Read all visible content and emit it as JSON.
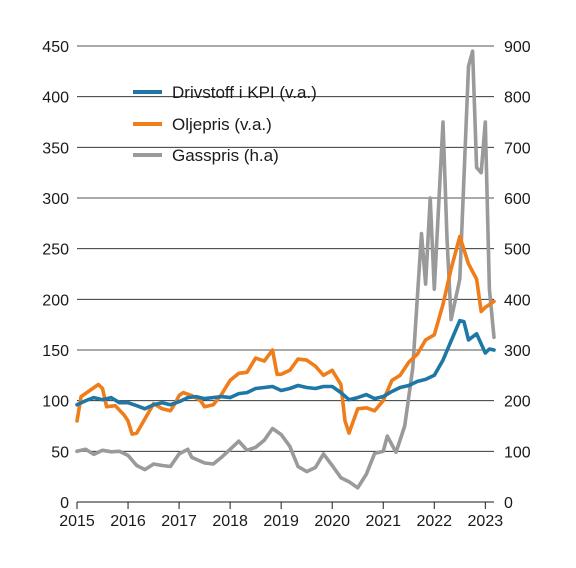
{
  "chart_data": {
    "type": "line",
    "title": "",
    "xlabel": "",
    "ylabel_left": "",
    "ylabel_right": "",
    "x_tick_labels": [
      "2015",
      "2016",
      "2017",
      "2018",
      "2019",
      "2020",
      "2021",
      "2022",
      "2023"
    ],
    "x_range": [
      2015.0,
      2023.17
    ],
    "y_left_ticks": [
      0,
      50,
      100,
      150,
      200,
      250,
      300,
      350,
      400,
      450
    ],
    "y_left_range": [
      0,
      450
    ],
    "y_right_ticks": [
      0,
      100,
      200,
      300,
      400,
      500,
      600,
      700,
      800,
      900
    ],
    "y_right_range": [
      0,
      900
    ],
    "grid": "horizontal",
    "legend_position": "top-left",
    "series": [
      {
        "name": "Drivstoff i KPI (v.a.)",
        "color": "#1f77a6",
        "axis": "left",
        "points": [
          [
            2015.0,
            96
          ],
          [
            2015.17,
            100
          ],
          [
            2015.33,
            103
          ],
          [
            2015.5,
            101
          ],
          [
            2015.67,
            103
          ],
          [
            2015.83,
            98
          ],
          [
            2016.0,
            98
          ],
          [
            2016.17,
            95
          ],
          [
            2016.33,
            92
          ],
          [
            2016.5,
            96
          ],
          [
            2016.67,
            98
          ],
          [
            2016.83,
            96
          ],
          [
            2017.0,
            99
          ],
          [
            2017.17,
            103
          ],
          [
            2017.33,
            104
          ],
          [
            2017.5,
            102
          ],
          [
            2017.67,
            103
          ],
          [
            2017.83,
            104
          ],
          [
            2018.0,
            103
          ],
          [
            2018.17,
            107
          ],
          [
            2018.33,
            108
          ],
          [
            2018.5,
            112
          ],
          [
            2018.67,
            113
          ],
          [
            2018.83,
            114
          ],
          [
            2019.0,
            110
          ],
          [
            2019.17,
            112
          ],
          [
            2019.33,
            115
          ],
          [
            2019.5,
            113
          ],
          [
            2019.67,
            112
          ],
          [
            2019.83,
            114
          ],
          [
            2020.0,
            114
          ],
          [
            2020.17,
            108
          ],
          [
            2020.33,
            101
          ],
          [
            2020.5,
            103
          ],
          [
            2020.67,
            106
          ],
          [
            2020.83,
            102
          ],
          [
            2021.0,
            104
          ],
          [
            2021.17,
            109
          ],
          [
            2021.33,
            113
          ],
          [
            2021.5,
            115
          ],
          [
            2021.67,
            119
          ],
          [
            2021.83,
            121
          ],
          [
            2022.0,
            125
          ],
          [
            2022.17,
            140
          ],
          [
            2022.33,
            159
          ],
          [
            2022.5,
            179
          ],
          [
            2022.58,
            178
          ],
          [
            2022.67,
            160
          ],
          [
            2022.83,
            166
          ],
          [
            2023.0,
            147
          ],
          [
            2023.08,
            151
          ],
          [
            2023.17,
            150
          ]
        ]
      },
      {
        "name": "Oljepris (v.a.)",
        "color": "#ef7d1a",
        "axis": "left",
        "points": [
          [
            2015.0,
            80
          ],
          [
            2015.08,
            104
          ],
          [
            2015.25,
            110
          ],
          [
            2015.42,
            116
          ],
          [
            2015.5,
            112
          ],
          [
            2015.58,
            94
          ],
          [
            2015.75,
            95
          ],
          [
            2015.92,
            86
          ],
          [
            2016.0,
            80
          ],
          [
            2016.08,
            67
          ],
          [
            2016.17,
            68
          ],
          [
            2016.33,
            82
          ],
          [
            2016.5,
            97
          ],
          [
            2016.67,
            92
          ],
          [
            2016.83,
            90
          ],
          [
            2016.92,
            97
          ],
          [
            2017.0,
            105
          ],
          [
            2017.08,
            108
          ],
          [
            2017.25,
            105
          ],
          [
            2017.42,
            100
          ],
          [
            2017.5,
            94
          ],
          [
            2017.67,
            96
          ],
          [
            2017.83,
            106
          ],
          [
            2018.0,
            120
          ],
          [
            2018.17,
            127
          ],
          [
            2018.33,
            128
          ],
          [
            2018.5,
            142
          ],
          [
            2018.67,
            139
          ],
          [
            2018.83,
            150
          ],
          [
            2018.92,
            126
          ],
          [
            2019.0,
            126
          ],
          [
            2019.17,
            130
          ],
          [
            2019.33,
            141
          ],
          [
            2019.5,
            140
          ],
          [
            2019.67,
            134
          ],
          [
            2019.83,
            125
          ],
          [
            2020.0,
            130
          ],
          [
            2020.17,
            116
          ],
          [
            2020.25,
            80
          ],
          [
            2020.33,
            68
          ],
          [
            2020.5,
            92
          ],
          [
            2020.67,
            93
          ],
          [
            2020.83,
            90
          ],
          [
            2021.0,
            100
          ],
          [
            2021.17,
            120
          ],
          [
            2021.33,
            125
          ],
          [
            2021.5,
            138
          ],
          [
            2021.67,
            146
          ],
          [
            2021.83,
            160
          ],
          [
            2022.0,
            165
          ],
          [
            2022.17,
            195
          ],
          [
            2022.33,
            230
          ],
          [
            2022.5,
            262
          ],
          [
            2022.67,
            235
          ],
          [
            2022.83,
            220
          ],
          [
            2022.92,
            188
          ],
          [
            2023.0,
            192
          ],
          [
            2023.17,
            198
          ]
        ]
      },
      {
        "name": "Gasspris (h.a)",
        "color": "#9a9a9a",
        "axis": "right",
        "points": [
          [
            2015.0,
            100
          ],
          [
            2015.17,
            104
          ],
          [
            2015.33,
            94
          ],
          [
            2015.5,
            102
          ],
          [
            2015.67,
            99
          ],
          [
            2015.83,
            100
          ],
          [
            2016.0,
            92
          ],
          [
            2016.17,
            72
          ],
          [
            2016.33,
            64
          ],
          [
            2016.5,
            75
          ],
          [
            2016.67,
            72
          ],
          [
            2016.83,
            70
          ],
          [
            2017.0,
            95
          ],
          [
            2017.17,
            104
          ],
          [
            2017.25,
            88
          ],
          [
            2017.5,
            77
          ],
          [
            2017.67,
            75
          ],
          [
            2017.83,
            88
          ],
          [
            2018.0,
            104
          ],
          [
            2018.17,
            120
          ],
          [
            2018.33,
            102
          ],
          [
            2018.5,
            108
          ],
          [
            2018.67,
            122
          ],
          [
            2018.83,
            145
          ],
          [
            2019.0,
            133
          ],
          [
            2019.17,
            110
          ],
          [
            2019.33,
            70
          ],
          [
            2019.5,
            60
          ],
          [
            2019.67,
            68
          ],
          [
            2019.83,
            95
          ],
          [
            2020.0,
            72
          ],
          [
            2020.17,
            48
          ],
          [
            2020.33,
            40
          ],
          [
            2020.5,
            28
          ],
          [
            2020.67,
            55
          ],
          [
            2020.83,
            96
          ],
          [
            2021.0,
            100
          ],
          [
            2021.08,
            130
          ],
          [
            2021.25,
            98
          ],
          [
            2021.42,
            150
          ],
          [
            2021.58,
            265
          ],
          [
            2021.75,
            530
          ],
          [
            2021.83,
            430
          ],
          [
            2021.92,
            600
          ],
          [
            2022.0,
            420
          ],
          [
            2022.17,
            750
          ],
          [
            2022.25,
            520
          ],
          [
            2022.33,
            360
          ],
          [
            2022.5,
            440
          ],
          [
            2022.67,
            860
          ],
          [
            2022.75,
            890
          ],
          [
            2022.83,
            660
          ],
          [
            2022.92,
            650
          ],
          [
            2023.0,
            750
          ],
          [
            2023.08,
            420
          ],
          [
            2023.17,
            325
          ]
        ]
      }
    ]
  }
}
